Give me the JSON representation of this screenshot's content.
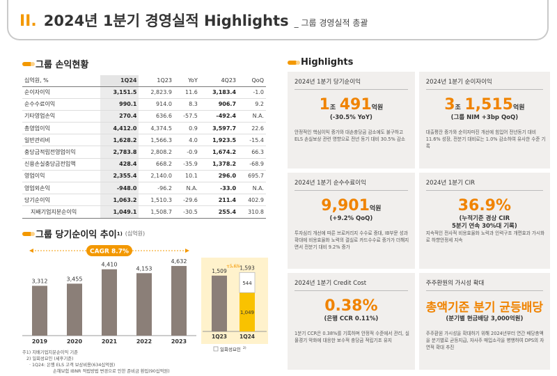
{
  "header": {
    "section_num": "II.",
    "title": "2024년 1분기 경영실적 Highlights",
    "subtitle": "_ 그룹 경영실적 총괄"
  },
  "pl_section": {
    "title": "그룹 손익현황"
  },
  "pl_table": {
    "columns": [
      "십억원, %",
      "1Q24",
      "1Q23",
      "YoY",
      "4Q23",
      "QoQ"
    ],
    "rows": [
      {
        "label": "순이자이익",
        "q1_24": "3,151.5",
        "q1_23": "2,823.9",
        "yoy": "11.6",
        "q4_23": "3,183.4",
        "qoq": "-1.0"
      },
      {
        "label": "순수수료이익",
        "q1_24": "990.1",
        "q1_23": "914.0",
        "yoy": "8.3",
        "q4_23": "906.7",
        "qoq": "9.2"
      },
      {
        "label": "기타영업손익",
        "q1_24": "270.4",
        "q1_23": "636.6",
        "yoy": "-57.5",
        "q4_23": "-492.4",
        "qoq": "N.A."
      },
      {
        "label": "총영업이익",
        "q1_24": "4,412.0",
        "q1_23": "4,374.5",
        "yoy": "0.9",
        "q4_23": "3,597.7",
        "qoq": "22.6"
      },
      {
        "label": "일반관리비",
        "q1_24": "1,628.2",
        "q1_23": "1,566.3",
        "yoy": "4.0",
        "q4_23": "1,923.5",
        "qoq": "-15.4"
      },
      {
        "label": "충당금적립전영업이익",
        "q1_24": "2,783.8",
        "q1_23": "2,808.2",
        "yoy": "-0.9",
        "q4_23": "1,674.2",
        "qoq": "66.3"
      },
      {
        "label": "신용손실충당금전입액",
        "q1_24": "428.4",
        "q1_23": "668.2",
        "yoy": "-35.9",
        "q4_23": "1,378.2",
        "qoq": "-68.9"
      },
      {
        "label": "영업이익",
        "q1_24": "2,355.4",
        "q1_23": "2,140.0",
        "yoy": "10.1",
        "q4_23": "296.0",
        "qoq": "695.7"
      },
      {
        "label": "영업외손익",
        "q1_24": "-948.0",
        "q1_23": "-96.2",
        "yoy": "N.A.",
        "q4_23": "-33.0",
        "qoq": "N.A."
      },
      {
        "label": "당기순이익",
        "q1_24": "1,063.2",
        "q1_23": "1,510.3",
        "yoy": "-29.6",
        "q4_23": "211.4",
        "qoq": "402.9"
      },
      {
        "label": "지배기업지분순이익",
        "q1_24": "1,049.1",
        "q1_23": "1,508.7",
        "yoy": "-30.5",
        "q4_23": "255.4",
        "qoq": "310.8"
      }
    ]
  },
  "ni_section": {
    "title": "그룹 당기순이익 추이",
    "sup": "1)",
    "note": "(십억원)"
  },
  "chart_data": [
    {
      "type": "bar",
      "categories": [
        "2019",
        "2020",
        "2021",
        "2022",
        "2023"
      ],
      "values": [
        3312,
        3455,
        4410,
        4153,
        4632
      ],
      "value_labels": [
        "3,312",
        "3,455",
        "4,410",
        "4,153",
        "4,632"
      ],
      "annotation": "CAGR 8.7%",
      "colors": {
        "bar": "#8b7f78",
        "accent": "#f39800"
      }
    },
    {
      "type": "bar",
      "categories": [
        "1Q23",
        "1Q24"
      ],
      "values": [
        1509,
        1593
      ],
      "value_labels": [
        "1,509",
        "1,593"
      ],
      "stack_top": {
        "value": 544,
        "label": "544"
      },
      "stack_bottom": {
        "value": 1049,
        "label": "1,049"
      },
      "growth_label": "+5.6%",
      "legend": "일회성요인",
      "legend_sup": "2)",
      "colors": {
        "bar": "#8b7f78",
        "highlight": "#f9c200",
        "panel": "#fff2cc"
      }
    }
  ],
  "footnotes": [
    "주1) 지배기업지분순이익 기준",
    "2) 일회성요인 (세후기준)",
    "· 1Q24: 은행 ELS 고객 보상비용(634십억원)",
    "손해보험 IBNR 적립방법 변경으로 인한 준비금 환입(90십억원)"
  ],
  "highlights": {
    "title": "Highlights",
    "cards": [
      {
        "title": "2024년 1분기 당기순이익",
        "big_prefix": "1",
        "big_prefix_unit": "조",
        "big_main": "491",
        "big_unit": "억원",
        "sub": [
          "(-30.5% YoY)"
        ],
        "desc": "안정적인 핵심이익 증가와 대손충당금 감소에도 불구하고 ELS 손실보상 관련 영향으로 전년 동기 대비 30.5% 감소"
      },
      {
        "title": "2024년 1분기 순이자이익",
        "big_prefix": "3",
        "big_prefix_unit": "조",
        "big_main": "1,515",
        "big_unit": "억원",
        "sub": [
          "(그룹 NIM +3bp QoQ)"
        ],
        "desc": "대출평잔 증가와 순이자마진 개선에 힘입어 전년동기 대비 11.6% 성장, 전분기 대비로는 1.0% 감소하여 유사한 수준 기록"
      },
      {
        "title": "2024년 1분기 순수수료이익",
        "big_prefix": "",
        "big_prefix_unit": "",
        "big_main": "9,901",
        "big_unit": "억원",
        "sub": [
          "(+9.2% QoQ)"
        ],
        "desc": "투자심리 개선에 따른 브로커리지 수수료 증대, IB부문 성과 확대에 비용효율화 노력의 결실로 카드수수료 증가가 더해지면서 전분기 대비 9.2% 증가"
      },
      {
        "title": "2024년 1분기 CIR",
        "big_prefix": "",
        "big_prefix_unit": "",
        "big_main": "36.9%",
        "big_unit": "",
        "sub": [
          "(누적기준 경상 CIR",
          "5분기 연속 30%대 기록)"
        ],
        "desc": "지속적인 전사적 비용효율화 노력과 인력구조 개편효과 가시화로 하향안정세 지속"
      },
      {
        "title": "2024년 1분기 Credit Cost",
        "big_prefix": "",
        "big_prefix_unit": "",
        "big_main": "0.38%",
        "big_unit": "",
        "sub": [
          "(은행 CCR 0.11%)"
        ],
        "desc": "1분기 CCR은 0.38%를 기록하며 안정적 수준에서 관리, 실물경기 악화에 대응한 보수적 충당금 적립기조 유지"
      },
      {
        "title": "주주환원의 가시성 확대",
        "big_prefix": "",
        "big_prefix_unit": "",
        "big_main": "총액기준 분기 균등배당",
        "big_unit": "",
        "sub": [
          "(분기별 현금배당 3,000억원)"
        ],
        "desc": "주주환원 가시성을 확대하기 위해 2024년부터 연간 배당총액을 분기별로 균등지급, 자사주 매입소각을 병행하여 DPS의 자연적 확대 추진"
      }
    ]
  }
}
